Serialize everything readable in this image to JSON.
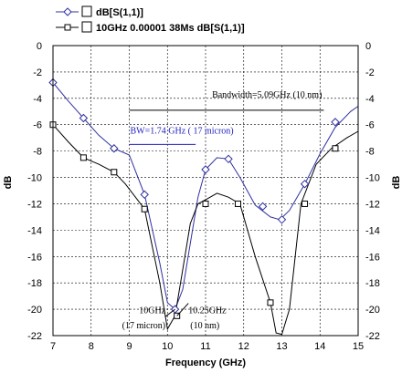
{
  "chart_data": {
    "type": "line",
    "xlabel": "Frequency (GHz)",
    "ylabel_left": "dB",
    "ylabel_right": "dB",
    "xlim": [
      7,
      15
    ],
    "ylim": [
      -22,
      0
    ],
    "xticks": [
      "7",
      "8",
      "9",
      "10",
      "11",
      "12",
      "13",
      "14",
      "15"
    ],
    "yticks": [
      "0",
      "-2",
      "-4",
      "-6",
      "-8",
      "-10",
      "-12",
      "-14",
      "-16",
      "-18",
      "-20",
      "-22"
    ],
    "grid": true,
    "legend_position": "top-left",
    "series": [
      {
        "name": "dB[S(1,1)]",
        "color": "#3030a0",
        "marker": "diamond",
        "x": [
          7.0,
          7.4,
          7.8,
          8.2,
          8.6,
          9.0,
          9.4,
          9.8,
          10.0,
          10.2,
          10.4,
          10.6,
          10.8,
          11.0,
          11.3,
          11.6,
          11.9,
          12.3,
          12.7,
          12.95,
          13.2,
          13.6,
          14.0,
          14.4,
          14.8,
          15.0
        ],
        "y": [
          -2.8,
          -4.2,
          -5.5,
          -6.8,
          -7.8,
          -8.3,
          -11.3,
          -16.5,
          -19.5,
          -20.0,
          -18.5,
          -15.0,
          -11.5,
          -9.4,
          -8.5,
          -8.6,
          -10.0,
          -12.1,
          -13.0,
          -13.2,
          -12.5,
          -10.5,
          -8.2,
          -6.2,
          -5.0,
          -4.6
        ]
      },
      {
        "name": "10GHz 0.00001 38Ms dB[S(1,1)]",
        "color": "#000000",
        "marker": "square",
        "x": [
          7.0,
          7.4,
          7.8,
          8.2,
          8.6,
          8.9,
          9.4,
          9.8,
          10.0,
          10.2,
          10.4,
          10.6,
          10.8,
          11.0,
          11.3,
          11.6,
          11.9,
          12.3,
          12.7,
          12.85,
          13.0,
          13.2,
          13.5,
          13.9,
          14.3,
          14.7,
          15.0
        ],
        "y": [
          -6.0,
          -7.3,
          -8.5,
          -9.0,
          -9.6,
          -10.5,
          -12.4,
          -18.0,
          -21.5,
          -20.5,
          -17.0,
          -13.5,
          -12.0,
          -11.7,
          -11.2,
          -11.5,
          -12.0,
          -16.0,
          -19.5,
          -21.8,
          -21.9,
          -20.0,
          -12.0,
          -9.0,
          -7.8,
          -7.0,
          -6.5
        ]
      }
    ],
    "markers": {
      "s1": {
        "x": [
          7.0,
          7.8,
          8.6,
          9.4,
          10.2,
          11.0,
          11.6,
          12.5,
          13.0,
          13.6,
          14.4
        ],
        "y": [
          -2.8,
          -5.5,
          -7.8,
          -11.3,
          -20.0,
          -9.4,
          -8.6,
          -12.2,
          -13.2,
          -10.5,
          -5.8
        ]
      },
      "s2": {
        "x": [
          7.0,
          7.8,
          8.6,
          9.4,
          10.25,
          11.0,
          11.85,
          12.7,
          13.6,
          14.4
        ],
        "y": [
          -6.0,
          -8.5,
          -9.6,
          -12.4,
          -20.5,
          -12.0,
          -12.0,
          -19.5,
          -12.0,
          -7.8
        ]
      }
    },
    "annotations": {
      "bandwidth_10nm": {
        "text": "Bandwidth=5.09GHz (10 nm)",
        "x1": 9.0,
        "x2": 14.1,
        "y": -4.9,
        "color": "#000000"
      },
      "bandwidth_17micron": {
        "text": "BW=1.74 GHz ( 17 micron)",
        "x1": 9.0,
        "x2": 10.74,
        "y": -7.5,
        "color": "#1f1fbf"
      },
      "label_10ghz": {
        "line1": "10GHz",
        "line2": "(17 micron)",
        "point_x": 10.2,
        "point_y": -20.0
      },
      "label_1025ghz": {
        "line1": "10.25GHz",
        "line2": "(10 nm)",
        "point_x": 10.25,
        "point_y": -20.5
      }
    }
  }
}
